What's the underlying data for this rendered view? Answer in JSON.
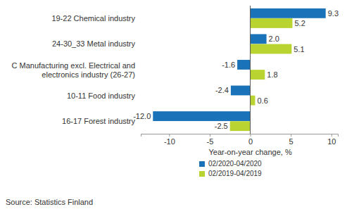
{
  "chart_data": {
    "type": "bar",
    "orientation": "horizontal",
    "categories": [
      "19-22 Chemical industry",
      "24-30_33 Metal industry",
      "C Manufacturing excl. Electrical and electronics industry (26-27)",
      "10-11 Food industry",
      "16-17 Forest industry"
    ],
    "series": [
      {
        "name": "02/2020-04/2020",
        "color": "#1a73b8",
        "values": [
          9.3,
          2.0,
          -1.6,
          -2.4,
          -12.0
        ],
        "value_labels": [
          "9.3",
          "2.0",
          "-1.6",
          "-2.4",
          "-12.0"
        ]
      },
      {
        "name": "02/2019-04/2019",
        "color": "#b9d430",
        "values": [
          5.2,
          5.1,
          1.8,
          0.6,
          -2.5
        ],
        "value_labels": [
          "5.2",
          "5.1",
          "1.8",
          "0.6",
          "-2.5"
        ]
      }
    ],
    "xlim": [
      -13.5,
      10.8
    ],
    "xticks": [
      -10,
      -5,
      0,
      5,
      10
    ],
    "xlabel": "Year-on-year change, %",
    "source": "Source: Statistics Finland",
    "data_labels": true,
    "grid": false,
    "legend": "bottom"
  }
}
